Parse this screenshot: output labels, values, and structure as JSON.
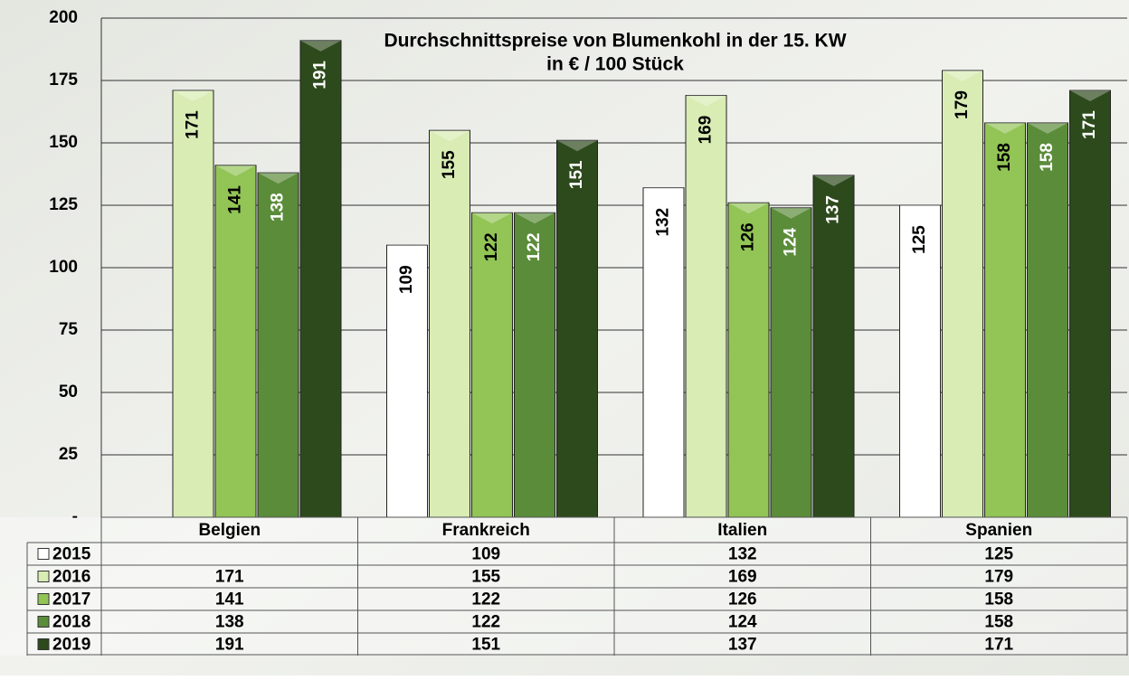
{
  "chart_data": {
    "type": "bar",
    "title": "Durchschnittspreise von Blumenkohl in der 15. KW",
    "subtitle": "in € / 100 Stück",
    "categories": [
      "Belgien",
      "Frankreich",
      "Italien",
      "Spanien"
    ],
    "series": [
      {
        "name": "2015",
        "color": "#ffffff",
        "values": [
          null,
          109,
          132,
          125
        ]
      },
      {
        "name": "2016",
        "color": "#d8ecb4",
        "values": [
          171,
          155,
          169,
          179
        ]
      },
      {
        "name": "2017",
        "color": "#92c456",
        "values": [
          141,
          122,
          126,
          158
        ]
      },
      {
        "name": "2018",
        "color": "#5b8c3a",
        "values": [
          138,
          122,
          124,
          158
        ]
      },
      {
        "name": "2019",
        "color": "#2d4a1c",
        "values": [
          191,
          151,
          137,
          171
        ]
      }
    ],
    "ylim": [
      0,
      200
    ],
    "yticks": [
      {
        "value": 0,
        "label": "-"
      },
      25,
      50,
      75,
      100,
      125,
      150,
      175,
      200
    ],
    "grid": true
  }
}
